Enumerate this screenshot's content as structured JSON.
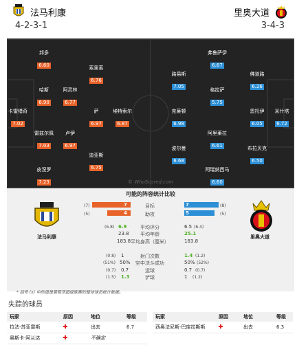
{
  "home": {
    "name": "法马利康",
    "formation": "4-2-3-1",
    "color": "#e8632a"
  },
  "away": {
    "name": "里奥大道",
    "formation": "3-4-3",
    "color": "#2d8fd6"
  },
  "home_players": [
    {
      "name": "邦多",
      "rating": "6.60"
    },
    {
      "name": "索里索",
      "rating": "6.76"
    },
    {
      "name": "哈斯",
      "rating": "6.90"
    },
    {
      "name": "阿灵林",
      "rating": "6.77"
    },
    {
      "name": "卡雷猎奇",
      "rating": "7.02"
    },
    {
      "name": "萨",
      "rating": "6.97"
    },
    {
      "name": "埃特索尔",
      "rating": "6.87"
    },
    {
      "name": "雷兹尔佩",
      "rating": "7.03"
    },
    {
      "name": "卢伊",
      "rating": "6.97"
    },
    {
      "name": "迪亚斯",
      "rating": "6.75"
    },
    {
      "name": "皮涅罗",
      "rating": "7.23"
    }
  ],
  "away_players": [
    {
      "name": "弗鲁萨伊",
      "rating": "6.67"
    },
    {
      "name": "路易斯",
      "rating": "7.05"
    },
    {
      "name": "佛道路",
      "rating": "6.26"
    },
    {
      "name": "格拉萨",
      "rating": "5.75"
    },
    {
      "name": "克莱顿",
      "rating": "6.98"
    },
    {
      "name": "恩托伊",
      "rating": "6.05"
    },
    {
      "name": "米什塔",
      "rating": "6.72"
    },
    {
      "name": "阿里莱拉",
      "rating": "6.61"
    },
    {
      "name": "布拉贝克",
      "rating": "6.50"
    },
    {
      "name": "波尔曼",
      "rating": "6.68"
    },
    {
      "name": "阿瑞纳西马",
      "rating": "6.60"
    }
  ],
  "watermark": "© WhoScored.com",
  "comparison": {
    "title": "可能的阵容统计比较",
    "home_label": "法马利康",
    "away_label": "里奥大道",
    "bars": [
      {
        "label": "目标",
        "home": "7",
        "home_paren": "(7)",
        "away": "7",
        "away_paren": "(8)",
        "home_frac": 0.7,
        "away_frac": 0.7
      },
      {
        "label": "助攻",
        "home": "4",
        "home_paren": "(5)",
        "away": "5",
        "away_paren": "(5)",
        "home_frac": 0.44,
        "away_frac": 0.55
      }
    ],
    "rows1": [
      {
        "label": "平均评分",
        "home": "6.9",
        "home_paren": "(6.8)",
        "away": "6.5",
        "away_paren": "(6.4)",
        "home_green": true,
        "away_green": false
      },
      {
        "label": "平均年龄",
        "home": "23.8",
        "home_paren": "",
        "away": "25.1",
        "away_paren": "",
        "home_green": false,
        "away_green": true
      },
      {
        "label": "平均身高（厘米）",
        "home": "183.8",
        "home_paren": "",
        "away": "183.8",
        "away_paren": "",
        "home_green": false,
        "away_green": false
      }
    ],
    "rows2": [
      {
        "label": "射门次数",
        "home": "1",
        "home_paren": "(0.8)",
        "away": "1.4",
        "away_paren": "(1.2)",
        "home_green": false,
        "away_green": true
      },
      {
        "label": "空中决斗成功",
        "home": "50%",
        "home_paren": "(51%)",
        "away": "50%",
        "away_paren": "(52%)",
        "home_green": false,
        "away_green": false
      },
      {
        "label": "运球",
        "home": "0.7",
        "home_paren": "(0.7)",
        "away": "0.7",
        "away_paren": "(0.7)",
        "home_green": false,
        "away_green": false
      },
      {
        "label": "铲球",
        "home": "1.3",
        "home_paren": "(1.5)",
        "away": "1",
        "away_paren": "(1.2)",
        "home_green": true,
        "away_green": false
      }
    ],
    "note": "* 括号 (x) 中的值是葡萄牙超级联赛的整体球员统计数据。"
  },
  "missing": {
    "title": "失踪的球员",
    "headers": [
      "玩家",
      "原因",
      "地位",
      "等级"
    ],
    "left_rows": [
      {
        "player": "拉法-苏亚雷斯",
        "status": "出去",
        "rating": "6.7"
      },
      {
        "player": "奥斯卡·阿兰达",
        "status": "不确定",
        "rating": ""
      }
    ],
    "right_rows": [
      {
        "player": "西奥法尼斯-巴库拉斯斯",
        "status": "出去",
        "rating": "6.3"
      }
    ]
  }
}
